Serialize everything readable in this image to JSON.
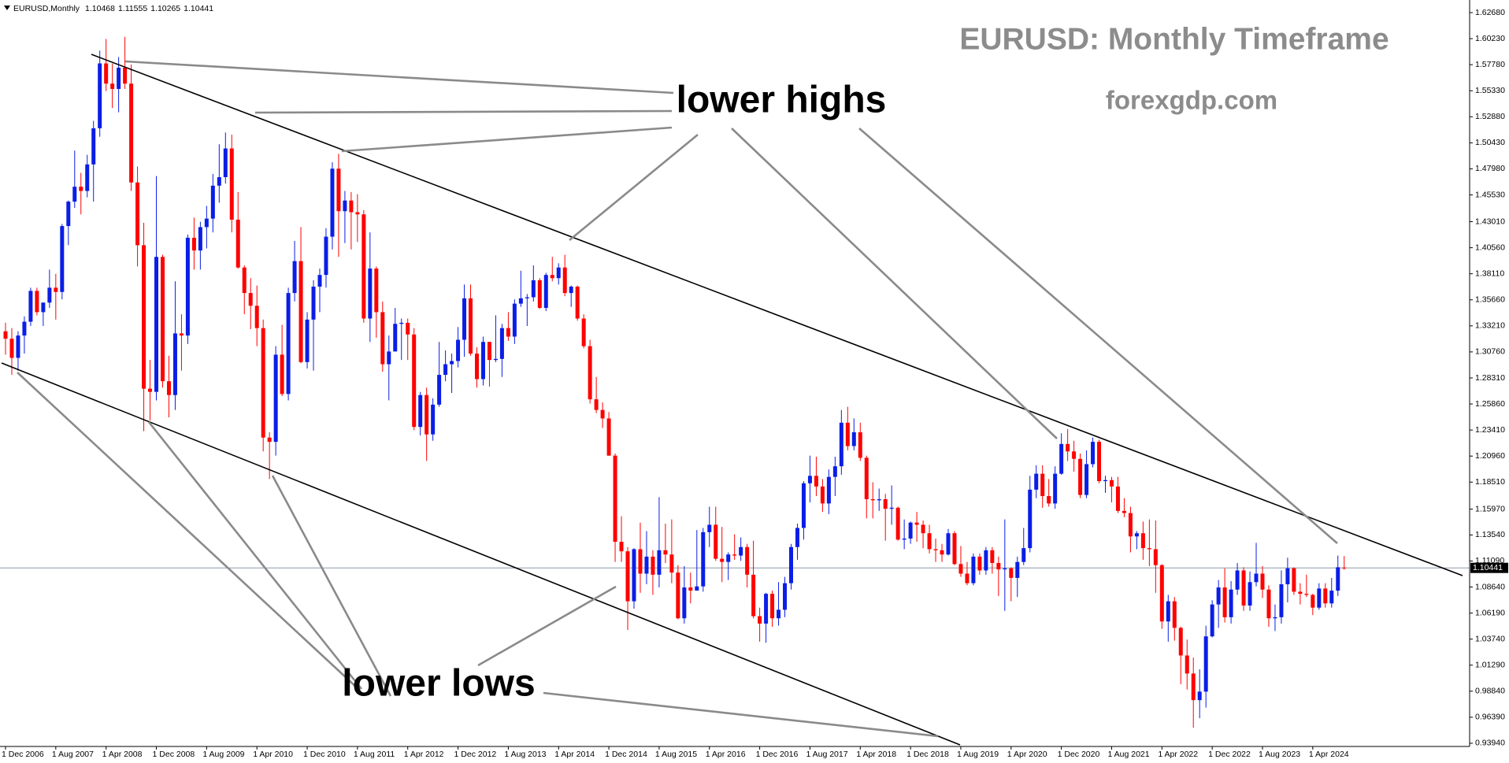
{
  "chart_data": {
    "type": "candlestick",
    "symbol": "EURUSD,Monthly",
    "title": "EURUSD: Monthly Timeframe",
    "subtitle": "forexgdp.com",
    "annotations": [
      "lower highs",
      "lower lows"
    ],
    "up_color": "#0a1ee6",
    "down_color": "#ff0000",
    "categories": [
      "1 Dec 2006",
      null,
      null,
      null,
      null,
      null,
      null,
      null,
      "1 Aug 2007",
      null,
      null,
      null,
      null,
      null,
      null,
      null,
      "1 Apr 2008",
      null,
      null,
      null,
      null,
      null,
      null,
      null,
      "1 Dec 2008",
      null,
      null,
      null,
      null,
      null,
      null,
      null,
      "1 Aug 2009",
      null,
      null,
      null,
      null,
      null,
      null,
      null,
      "1 Apr 2010",
      null,
      null,
      null,
      null,
      null,
      null,
      null,
      "1 Dec 2010",
      null,
      null,
      null,
      null,
      null,
      null,
      null,
      "1 Aug 2011",
      null,
      null,
      null,
      null,
      null,
      null,
      null,
      "1 Apr 2012",
      null,
      null,
      null,
      null,
      null,
      null,
      null,
      "1 Dec 2012",
      null,
      null,
      null,
      null,
      null,
      null,
      null,
      "1 Aug 2013",
      null,
      null,
      null,
      null,
      null,
      null,
      null,
      "1 Apr 2014",
      null,
      null,
      null,
      null,
      null,
      null,
      null,
      "1 Dec 2014",
      null,
      null,
      null,
      null,
      null,
      null,
      null,
      "1 Aug 2015",
      null,
      null,
      null,
      null,
      null,
      null,
      null,
      "1 Apr 2016",
      null,
      null,
      null,
      null,
      null,
      null,
      null,
      "1 Dec 2016",
      null,
      null,
      null,
      null,
      null,
      null,
      null,
      "1 Aug 2017",
      null,
      null,
      null,
      null,
      null,
      null,
      null,
      "1 Apr 2018",
      null,
      null,
      null,
      null,
      null,
      null,
      null,
      "1 Dec 2018",
      null,
      null,
      null,
      null,
      null,
      null,
      null,
      "1 Aug 2019",
      null,
      null,
      null,
      null,
      null,
      null,
      null,
      "1 Apr 2020",
      null,
      null,
      null,
      null,
      null,
      null,
      null,
      "1 Dec 2020",
      null,
      null,
      null,
      null,
      null,
      null,
      null,
      "1 Aug 2021",
      null,
      null,
      null,
      null,
      null,
      null,
      null,
      "1 Apr 2022",
      null,
      null,
      null,
      null,
      null,
      null,
      null,
      "1 Dec 2022",
      null,
      null,
      null,
      null,
      null,
      null,
      null,
      "1 Aug 2023",
      null,
      null,
      null,
      null,
      null,
      null,
      null,
      "1 Apr 2024",
      null,
      null,
      null,
      null,
      null
    ],
    "open": [
      1.327,
      1.32,
      1.302,
      1.323,
      1.336,
      1.365,
      1.345,
      1.354,
      1.368,
      1.364,
      1.426,
      1.449,
      1.463,
      1.459,
      1.484,
      1.518,
      1.579,
      1.56,
      1.555,
      1.575,
      1.56,
      1.467,
      1.408,
      1.273,
      1.27,
      1.397,
      1.28,
      1.267,
      1.325,
      1.323,
      1.415,
      1.403,
      1.425,
      1.433,
      1.464,
      1.472,
      1.499,
      1.432,
      1.387,
      1.363,
      1.351,
      1.33,
      1.227,
      1.223,
      1.305,
      1.268,
      1.363,
      1.393,
      1.298,
      1.338,
      1.369,
      1.38,
      1.416,
      1.48,
      1.44,
      1.45,
      1.439,
      1.437,
      1.339,
      1.386,
      1.345,
      1.296,
      1.308,
      1.334,
      1.335,
      1.324,
      1.237,
      1.267,
      1.23,
      1.258,
      1.286,
      1.296,
      1.299,
      1.319,
      1.358,
      1.306,
      1.282,
      1.317,
      1.3,
      1.301,
      1.33,
      1.322,
      1.353,
      1.358,
      1.359,
      1.375,
      1.349,
      1.38,
      1.377,
      1.387,
      1.363,
      1.369,
      1.339,
      1.313,
      1.263,
      1.253,
      1.245,
      1.21,
      1.129,
      1.12,
      1.073,
      1.122,
      1.099,
      1.115,
      1.098,
      1.121,
      1.117,
      1.1,
      1.057,
      1.086,
      1.083,
      1.087,
      1.138,
      1.145,
      1.113,
      1.11,
      1.117,
      1.116,
      1.124,
      1.098,
      1.059,
      1.052,
      1.08,
      1.057,
      1.065,
      1.09,
      1.124,
      1.142,
      1.184,
      1.191,
      1.181,
      1.165,
      1.19,
      1.2,
      1.241,
      1.219,
      1.232,
      1.208,
      1.169,
      1.168,
      1.169,
      1.16,
      1.161,
      1.131,
      1.132,
      1.147,
      1.145,
      1.137,
      1.122,
      1.121,
      1.117,
      1.137,
      1.108,
      1.099,
      1.09,
      1.115,
      1.102,
      1.121,
      1.109,
      1.103,
      1.104,
      1.095,
      1.11,
      1.123,
      1.178,
      1.193,
      1.172,
      1.165,
      1.193,
      1.221,
      1.214,
      1.207,
      1.173,
      1.202,
      1.223,
      1.186,
      1.187,
      1.181,
      1.158,
      1.156,
      1.134,
      1.137,
      1.123,
      1.122,
      1.107,
      1.054,
      1.073,
      1.048,
      1.022,
      1.005,
      0.98,
      0.988,
      1.04,
      1.07,
      1.086,
      1.058,
      1.084,
      1.102,
      1.069,
      1.091,
      1.099,
      1.084,
      1.057,
      1.058,
      1.089,
      1.104,
      1.082,
      1.08,
      1.079,
      1.067,
      1.085,
      1.071,
      1.083,
      1.10468
    ],
    "high": [
      1.335,
      1.33,
      1.327,
      1.341,
      1.368,
      1.368,
      1.354,
      1.385,
      1.381,
      1.428,
      1.45,
      1.497,
      1.476,
      1.493,
      1.525,
      1.591,
      1.602,
      1.579,
      1.585,
      1.604,
      1.578,
      1.482,
      1.429,
      1.3,
      1.473,
      1.399,
      1.304,
      1.374,
      1.343,
      1.418,
      1.434,
      1.43,
      1.445,
      1.475,
      1.503,
      1.514,
      1.512,
      1.458,
      1.389,
      1.377,
      1.37,
      1.338,
      1.232,
      1.313,
      1.333,
      1.368,
      1.412,
      1.425,
      1.345,
      1.375,
      1.386,
      1.424,
      1.486,
      1.494,
      1.459,
      1.458,
      1.456,
      1.441,
      1.42,
      1.388,
      1.355,
      1.323,
      1.349,
      1.339,
      1.339,
      1.33,
      1.27,
      1.274,
      1.264,
      1.317,
      1.309,
      1.306,
      1.331,
      1.371,
      1.371,
      1.312,
      1.322,
      1.317,
      1.342,
      1.334,
      1.345,
      1.357,
      1.384,
      1.362,
      1.389,
      1.377,
      1.382,
      1.397,
      1.391,
      1.399,
      1.37,
      1.37,
      1.343,
      1.319,
      1.284,
      1.26,
      1.251,
      1.212,
      1.153,
      1.124,
      1.123,
      1.147,
      1.139,
      1.121,
      1.171,
      1.146,
      1.15,
      1.107,
      1.106,
      1.1,
      1.14,
      1.142,
      1.162,
      1.162,
      1.143,
      1.119,
      1.136,
      1.133,
      1.127,
      1.13,
      1.067,
      1.081,
      1.083,
      1.091,
      1.096,
      1.127,
      1.146,
      1.186,
      1.21,
      1.209,
      1.188,
      1.197,
      1.209,
      1.253,
      1.256,
      1.245,
      1.241,
      1.21,
      1.185,
      1.179,
      1.174,
      1.182,
      1.162,
      1.15,
      1.148,
      1.157,
      1.149,
      1.145,
      1.132,
      1.127,
      1.141,
      1.139,
      1.125,
      1.11,
      1.118,
      1.118,
      1.124,
      1.124,
      1.115,
      1.15,
      1.105,
      1.115,
      1.142,
      1.191,
      1.201,
      1.201,
      1.188,
      1.2,
      1.231,
      1.235,
      1.224,
      1.212,
      1.215,
      1.227,
      1.225,
      1.191,
      1.19,
      1.19,
      1.17,
      1.162,
      1.139,
      1.148,
      1.15,
      1.149,
      1.108,
      1.079,
      1.077,
      1.049,
      1.037,
      1.02,
      1.009,
      1.05,
      1.074,
      1.093,
      1.104,
      1.092,
      1.109,
      1.105,
      1.101,
      1.128,
      1.106,
      1.088,
      1.07,
      1.102,
      1.114,
      1.105,
      1.09,
      1.098,
      1.08,
      1.09,
      1.09,
      1.095,
      1.116,
      1.11555
    ],
    "low": [
      1.305,
      1.286,
      1.29,
      1.306,
      1.332,
      1.342,
      1.332,
      1.349,
      1.338,
      1.357,
      1.408,
      1.443,
      1.437,
      1.453,
      1.449,
      1.51,
      1.553,
      1.537,
      1.533,
      1.555,
      1.459,
      1.388,
      1.233,
      1.243,
      1.262,
      1.274,
      1.246,
      1.253,
      1.29,
      1.315,
      1.385,
      1.385,
      1.405,
      1.42,
      1.448,
      1.466,
      1.42,
      1.386,
      1.343,
      1.329,
      1.313,
      1.214,
      1.188,
      1.21,
      1.266,
      1.262,
      1.355,
      1.297,
      1.292,
      1.29,
      1.345,
      1.368,
      1.404,
      1.397,
      1.41,
      1.404,
      1.411,
      1.335,
      1.317,
      1.321,
      1.289,
      1.262,
      1.308,
      1.3,
      1.3,
      1.234,
      1.229,
      1.205,
      1.224,
      1.256,
      1.28,
      1.269,
      1.293,
      1.303,
      1.304,
      1.274,
      1.276,
      1.275,
      1.298,
      1.284,
      1.318,
      1.315,
      1.35,
      1.332,
      1.355,
      1.348,
      1.346,
      1.374,
      1.371,
      1.36,
      1.35,
      1.337,
      1.311,
      1.259,
      1.25,
      1.236,
      1.21,
      1.11,
      1.11,
      1.046,
      1.066,
      1.081,
      1.089,
      1.079,
      1.086,
      1.109,
      1.09,
      1.056,
      1.052,
      1.071,
      1.083,
      1.082,
      1.124,
      1.111,
      1.091,
      1.093,
      1.112,
      1.111,
      1.086,
      1.057,
      1.035,
      1.034,
      1.049,
      1.05,
      1.058,
      1.084,
      1.112,
      1.131,
      1.166,
      1.172,
      1.157,
      1.155,
      1.172,
      1.192,
      1.215,
      1.215,
      1.205,
      1.151,
      1.151,
      1.158,
      1.13,
      1.145,
      1.13,
      1.122,
      1.127,
      1.129,
      1.123,
      1.118,
      1.11,
      1.11,
      1.116,
      1.107,
      1.096,
      1.088,
      1.088,
      1.098,
      1.098,
      1.099,
      1.078,
      1.064,
      1.073,
      1.077,
      1.107,
      1.119,
      1.17,
      1.161,
      1.162,
      1.16,
      1.192,
      1.205,
      1.195,
      1.17,
      1.17,
      1.199,
      1.184,
      1.175,
      1.166,
      1.156,
      1.152,
      1.119,
      1.122,
      1.112,
      1.106,
      1.081,
      1.047,
      1.035,
      1.036,
      0.995,
      0.99,
      0.954,
      0.963,
      0.973,
      1.039,
      1.048,
      1.053,
      1.052,
      1.079,
      1.064,
      1.064,
      1.087,
      1.076,
      1.049,
      1.045,
      1.052,
      1.072,
      1.079,
      1.07,
      1.077,
      1.06,
      1.065,
      1.067,
      1.067,
      1.078,
      1.10265
    ],
    "close": [
      1.32,
      1.302,
      1.323,
      1.336,
      1.365,
      1.345,
      1.354,
      1.368,
      1.364,
      1.426,
      1.449,
      1.463,
      1.459,
      1.484,
      1.518,
      1.579,
      1.56,
      1.555,
      1.575,
      1.56,
      1.467,
      1.408,
      1.273,
      1.27,
      1.397,
      1.28,
      1.267,
      1.325,
      1.323,
      1.415,
      1.403,
      1.425,
      1.433,
      1.464,
      1.472,
      1.499,
      1.432,
      1.387,
      1.363,
      1.351,
      1.33,
      1.227,
      1.223,
      1.305,
      1.268,
      1.363,
      1.393,
      1.298,
      1.338,
      1.369,
      1.38,
      1.416,
      1.48,
      1.44,
      1.45,
      1.439,
      1.437,
      1.339,
      1.386,
      1.345,
      1.296,
      1.308,
      1.334,
      1.335,
      1.324,
      1.237,
      1.267,
      1.23,
      1.258,
      1.286,
      1.296,
      1.299,
      1.319,
      1.358,
      1.306,
      1.282,
      1.317,
      1.3,
      1.301,
      1.33,
      1.322,
      1.353,
      1.358,
      1.359,
      1.375,
      1.349,
      1.38,
      1.377,
      1.387,
      1.363,
      1.369,
      1.339,
      1.313,
      1.263,
      1.253,
      1.245,
      1.21,
      1.129,
      1.12,
      1.073,
      1.122,
      1.099,
      1.115,
      1.098,
      1.121,
      1.117,
      1.1,
      1.057,
      1.086,
      1.083,
      1.087,
      1.138,
      1.145,
      1.113,
      1.11,
      1.117,
      1.116,
      1.124,
      1.098,
      1.059,
      1.052,
      1.08,
      1.057,
      1.065,
      1.09,
      1.124,
      1.142,
      1.184,
      1.191,
      1.181,
      1.165,
      1.19,
      1.2,
      1.241,
      1.219,
      1.232,
      1.208,
      1.169,
      1.168,
      1.169,
      1.16,
      1.161,
      1.131,
      1.132,
      1.147,
      1.145,
      1.137,
      1.122,
      1.121,
      1.117,
      1.137,
      1.108,
      1.099,
      1.09,
      1.115,
      1.102,
      1.121,
      1.109,
      1.103,
      1.104,
      1.095,
      1.11,
      1.123,
      1.178,
      1.193,
      1.172,
      1.165,
      1.193,
      1.221,
      1.214,
      1.207,
      1.173,
      1.202,
      1.223,
      1.186,
      1.187,
      1.181,
      1.158,
      1.156,
      1.134,
      1.137,
      1.123,
      1.122,
      1.107,
      1.054,
      1.073,
      1.048,
      1.022,
      1.005,
      0.98,
      0.988,
      1.04,
      1.07,
      1.086,
      1.058,
      1.084,
      1.102,
      1.069,
      1.091,
      1.099,
      1.084,
      1.057,
      1.058,
      1.089,
      1.104,
      1.082,
      1.08,
      1.079,
      1.067,
      1.085,
      1.071,
      1.083,
      1.105,
      1.10441
    ],
    "ylim": [
      0.9364,
      1.6357
    ],
    "yticks": [
      {
        "value": 1.6268,
        "label": "1.62680"
      },
      {
        "value": 1.6023,
        "label": "1.60230"
      },
      {
        "value": 1.5778,
        "label": "1.57780"
      },
      {
        "value": 1.5533,
        "label": "1.55330"
      },
      {
        "value": 1.5288,
        "label": "1.52880"
      },
      {
        "value": 1.5043,
        "label": "1.50430"
      },
      {
        "value": 1.4798,
        "label": "1.47980"
      },
      {
        "value": 1.4553,
        "label": "1.45530"
      },
      {
        "value": 1.4301,
        "label": "1.43010"
      },
      {
        "value": 1.4056,
        "label": "1.40560"
      },
      {
        "value": 1.3811,
        "label": "1.38110"
      },
      {
        "value": 1.3566,
        "label": "1.35660"
      },
      {
        "value": 1.3321,
        "label": "1.33210"
      },
      {
        "value": 1.3076,
        "label": "1.30760"
      },
      {
        "value": 1.2831,
        "label": "1.28310"
      },
      {
        "value": 1.2586,
        "label": "1.25860"
      },
      {
        "value": 1.2341,
        "label": "1.23410"
      },
      {
        "value": 1.2096,
        "label": "1.20960"
      },
      {
        "value": 1.1851,
        "label": "1.18510"
      },
      {
        "value": 1.1597,
        "label": "1.15970"
      },
      {
        "value": 1.1354,
        "label": "1.13540"
      },
      {
        "value": 1.1109,
        "label": "1.11090"
      },
      {
        "value": 1.0864,
        "label": "1.08640"
      },
      {
        "value": 1.0619,
        "label": "1.06190"
      },
      {
        "value": 1.0374,
        "label": "1.03740"
      },
      {
        "value": 1.0129,
        "label": "1.01290"
      },
      {
        "value": 0.9884,
        "label": "0.98840"
      },
      {
        "value": 0.9639,
        "label": "0.96390"
      },
      {
        "value": 0.9394,
        "label": "0.93940"
      }
    ],
    "grid": false
  }
}
